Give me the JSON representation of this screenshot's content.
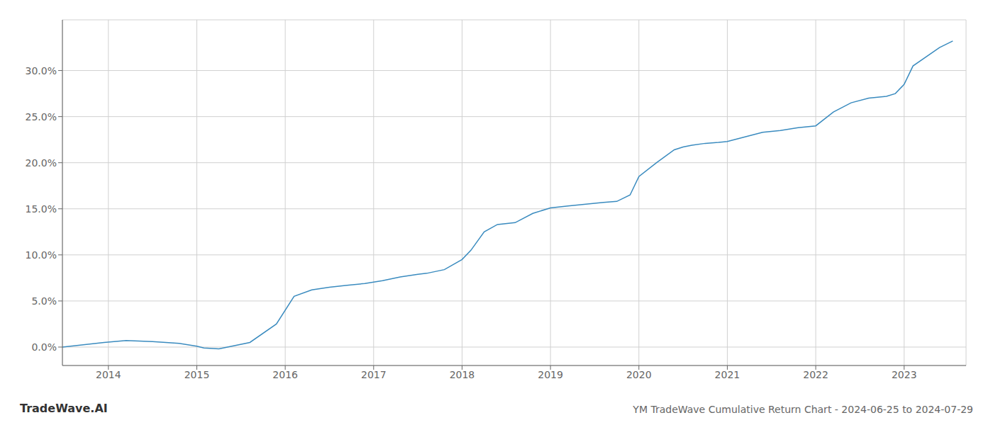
{
  "chart_data": {
    "type": "line",
    "title": "YM TradeWave Cumulative Return Chart - 2024-06-25 to 2024-07-29",
    "annotations": [
      "TradeWave.AI"
    ],
    "x": [
      2013.48,
      2013.95,
      2014.2,
      2014.5,
      2014.8,
      2015.0,
      2015.08,
      2015.25,
      2015.6,
      2015.9,
      2016.1,
      2016.3,
      2016.5,
      2016.7,
      2016.9,
      2017.1,
      2017.3,
      2017.5,
      2017.6,
      2017.8,
      2018.0,
      2018.1,
      2018.25,
      2018.4,
      2018.6,
      2018.8,
      2019.0,
      2019.2,
      2019.4,
      2019.6,
      2019.75,
      2019.9,
      2020.0,
      2020.2,
      2020.4,
      2020.5,
      2020.6,
      2020.75,
      2020.9,
      2021.0,
      2021.2,
      2021.4,
      2021.6,
      2021.8,
      2022.0,
      2022.2,
      2022.4,
      2022.6,
      2022.8,
      2022.9,
      2023.0,
      2023.1,
      2023.4,
      2023.55
    ],
    "values": [
      0.0,
      0.5,
      0.7,
      0.6,
      0.4,
      0.1,
      -0.1,
      -0.2,
      0.5,
      2.5,
      5.5,
      6.2,
      6.5,
      6.7,
      6.9,
      7.2,
      7.6,
      7.9,
      8.0,
      8.4,
      9.5,
      10.5,
      12.5,
      13.3,
      13.5,
      14.5,
      15.1,
      15.3,
      15.5,
      15.7,
      15.8,
      16.5,
      18.5,
      20.0,
      21.4,
      21.7,
      21.9,
      22.1,
      22.2,
      22.3,
      22.8,
      23.3,
      23.5,
      23.8,
      24.0,
      25.5,
      26.5,
      27.0,
      27.2,
      27.5,
      28.5,
      30.5,
      32.5,
      33.2
    ],
    "color": "#3a8bbf",
    "xlim": [
      2013.48,
      2023.7
    ],
    "ylim": [
      -2.0,
      35.5
    ],
    "xticks": [
      2014,
      2015,
      2016,
      2017,
      2018,
      2019,
      2020,
      2021,
      2022,
      2023
    ],
    "yticks": [
      {
        "value": 0.0,
        "label": "0.0%"
      },
      {
        "value": 5.0,
        "label": "5.0%"
      },
      {
        "value": 10.0,
        "label": "10.0%"
      },
      {
        "value": 15.0,
        "label": "15.0%"
      },
      {
        "value": 20.0,
        "label": "20.0%"
      },
      {
        "value": 25.0,
        "label": "25.0%"
      },
      {
        "value": 30.0,
        "label": "30.0%"
      }
    ],
    "grid": true
  }
}
